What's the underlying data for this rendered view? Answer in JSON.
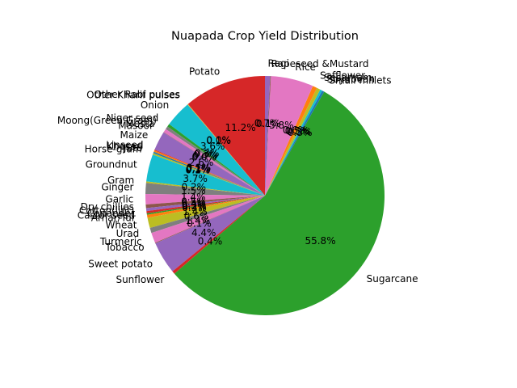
{
  "chart_data": {
    "type": "pie",
    "title": "Nuapada Crop Yield Distribution",
    "start_angle_deg": 90,
    "counterclock": true,
    "pct_format": "%.1f%%",
    "slices": [
      {
        "label": "Potato",
        "value": 11.2,
        "pct_label": "11.2%",
        "color": "#d62728"
      },
      {
        "label": "Other Rabi pulses",
        "value": 0.05,
        "pct_label": "0.0%",
        "color": "#ff7f0e"
      },
      {
        "label": "Other Kharif pulses",
        "value": 0.05,
        "pct_label": "0.1%",
        "color": "#bcbd22"
      },
      {
        "label": "Onion",
        "value": 3.6,
        "pct_label": "3.6%",
        "color": "#17becf"
      },
      {
        "label": "Niger seed",
        "value": 0.4,
        "pct_label": "0.3%",
        "color": "#2ca02c"
      },
      {
        "label": "Moong(Green Gram)",
        "value": 0.4,
        "pct_label": "0.3%",
        "color": "#7f7f7f"
      },
      {
        "label": "Mesta",
        "value": 0.5,
        "pct_label": "0.4%",
        "color": "#e377c2"
      },
      {
        "label": "Masoor",
        "value": 0.05,
        "pct_label": "0.0%",
        "color": "#8c564b"
      },
      {
        "label": "Maize",
        "value": 2.6,
        "pct_label": "2.6%",
        "color": "#9467bd"
      },
      {
        "label": "Linseed",
        "value": 0.1,
        "pct_label": "0.1%",
        "color": "#d62728"
      },
      {
        "label": "Khesari",
        "value": 0.2,
        "pct_label": "0.1%",
        "color": "#ff7f0e"
      },
      {
        "label": "Jute",
        "value": 0.2,
        "pct_label": "0.2%",
        "color": "#1f77b4"
      },
      {
        "label": "Horse-gram",
        "value": 0.2,
        "pct_label": "0.1%",
        "color": "#bcbd22"
      },
      {
        "label": "Groundnut",
        "value": 3.7,
        "pct_label": "3.7%",
        "color": "#17becf"
      },
      {
        "label": "Gram",
        "value": 0.2,
        "pct_label": "0.2%",
        "color": "#bcbd22"
      },
      {
        "label": "Ginger",
        "value": 1.5,
        "pct_label": "1.5%",
        "color": "#7f7f7f"
      },
      {
        "label": "Garlic",
        "value": 1.4,
        "pct_label": "1.4%",
        "color": "#e377c2"
      },
      {
        "label": "Dry chillies",
        "value": 0.5,
        "pct_label": "0.5%",
        "color": "#8c564b"
      },
      {
        "label": "Cotton(lint)",
        "value": 0.4,
        "pct_label": "0.4%",
        "color": "#9467bd"
      },
      {
        "label": "Coriander",
        "value": 0.3,
        "pct_label": "0.3%",
        "color": "#d62728"
      },
      {
        "label": "Castor seed",
        "value": 0.2,
        "pct_label": "0.2%",
        "color": "#2ca02c"
      },
      {
        "label": "Arhar/Tur",
        "value": 0.4,
        "pct_label": "0.3%",
        "color": "#ff7f0e"
      },
      {
        "label": "Wheat",
        "value": 1.4,
        "pct_label": "1.4%",
        "color": "#bcbd22"
      },
      {
        "label": "Urad",
        "value": 0.7,
        "pct_label": "0.6%",
        "color": "#7f7f7f"
      },
      {
        "label": "Turmeric",
        "value": 1.4,
        "pct_label": "1.4%",
        "color": "#e377c2"
      },
      {
        "label": "Tobacco",
        "value": 0.1,
        "pct_label": "0.1%",
        "color": "#8c564b"
      },
      {
        "label": "Sweet potato",
        "value": 4.4,
        "pct_label": "4.4%",
        "color": "#9467bd"
      },
      {
        "label": "Sunflower",
        "value": 0.4,
        "pct_label": "0.4%",
        "color": "#d62728"
      },
      {
        "label": "Sugarcane",
        "value": 55.8,
        "pct_label": "55.8%",
        "color": "#2ca02c"
      },
      {
        "label": "Small millets",
        "value": 0.3,
        "pct_label": "0.3%",
        "color": "#1f77b4"
      },
      {
        "label": "Soyabean",
        "value": 0.3,
        "pct_label": "0.3%",
        "color": "#17becf"
      },
      {
        "label": "Sesamum",
        "value": 0.5,
        "pct_label": "0.5%",
        "color": "#bcbd22"
      },
      {
        "label": "Safflower",
        "value": 0.6,
        "pct_label": "0.6%",
        "color": "#ff7f0e"
      },
      {
        "label": "Rice",
        "value": 5.8,
        "pct_label": "5.8%",
        "color": "#e377c2"
      },
      {
        "label": "Rapeseed &Mustard",
        "value": 0.1,
        "pct_label": "0.1%",
        "color": "#8c564b"
      },
      {
        "label": "Ragi",
        "value": 0.7,
        "pct_label": "0.7%",
        "color": "#9467bd"
      }
    ]
  }
}
